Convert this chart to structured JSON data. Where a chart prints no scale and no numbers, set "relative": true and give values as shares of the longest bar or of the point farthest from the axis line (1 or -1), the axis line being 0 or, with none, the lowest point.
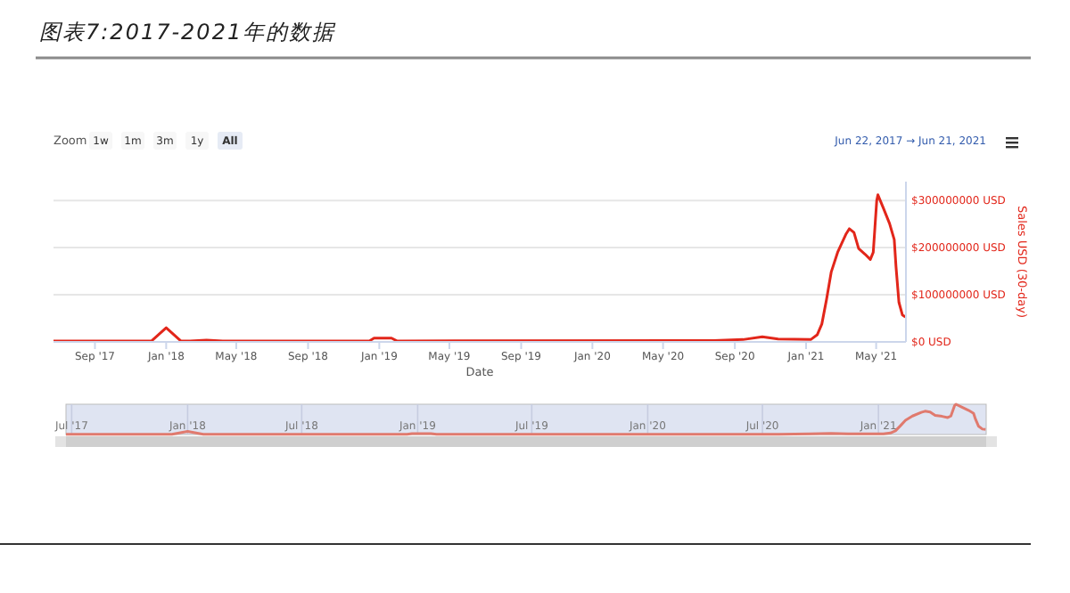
{
  "chart_data": [
    {
      "type": "line",
      "title": "图表7:2017-2021年的数据",
      "xlabel": "Date",
      "ylabel": "Sales USD (30-day)",
      "color": "#e2261a",
      "grid": "y",
      "annotations": [
        "Zoom",
        "1w",
        "1m",
        "3m",
        "1y",
        "All",
        "Jun 22, 2017",
        "→",
        "Jun 21, 2021"
      ],
      "x": [
        "2017-06-22",
        "2017-11-29",
        "2017-12-07",
        "2018-01-01",
        "2018-01-26",
        "2018-02-11",
        "2018-03-11",
        "2018-04-08",
        "2018-12-15",
        "2018-12-23",
        "2019-01-22",
        "2019-01-31",
        "2020-07-27",
        "2020-09-15",
        "2020-10-18",
        "2020-11-14",
        "2021-01-09",
        "2021-01-20",
        "2021-01-28",
        "2021-02-05",
        "2021-02-13",
        "2021-02-24",
        "2021-03-10",
        "2021-03-16",
        "2021-03-24",
        "2021-04-01",
        "2021-04-12",
        "2021-04-21",
        "2021-04-26",
        "2021-05-02",
        "2021-05-04",
        "2021-05-13",
        "2021-05-24",
        "2021-06-01",
        "2021-06-04",
        "2021-06-09",
        "2021-06-15",
        "2021-06-20"
      ],
      "values": [
        2000000,
        2000000,
        2000000,
        30000000,
        2000000,
        2000000,
        4000000,
        2000000,
        2000000,
        8000000,
        8000000,
        2000000,
        3000000,
        5000000,
        11000000,
        6000000,
        5000000,
        15000000,
        38000000,
        90000000,
        148000000,
        190000000,
        228000000,
        240000000,
        232000000,
        198000000,
        186000000,
        175000000,
        190000000,
        300000000,
        312000000,
        285000000,
        251000000,
        217000000,
        160000000,
        84000000,
        57000000,
        53000000
      ],
      "xlim": [
        "2017-06-22",
        "2021-06-21"
      ],
      "ylim": [
        0,
        340000000
      ],
      "xticks": [
        {
          "value": "2017-09-01",
          "label": "Sep '17"
        },
        {
          "value": "2018-01-01",
          "label": "Jan '18"
        },
        {
          "value": "2018-05-01",
          "label": "May '18"
        },
        {
          "value": "2018-09-01",
          "label": "Sep '18"
        },
        {
          "value": "2019-01-01",
          "label": "Jan '19"
        },
        {
          "value": "2019-05-01",
          "label": "May '19"
        },
        {
          "value": "2019-09-01",
          "label": "Sep '19"
        },
        {
          "value": "2020-01-01",
          "label": "Jan '20"
        },
        {
          "value": "2020-05-01",
          "label": "May '20"
        },
        {
          "value": "2020-09-01",
          "label": "Sep '20"
        },
        {
          "value": "2021-01-01",
          "label": "Jan '21"
        },
        {
          "value": "2021-05-01",
          "label": "May '21"
        }
      ],
      "yticks": [
        {
          "value": 0,
          "label": "$0 USD"
        },
        {
          "value": 100000000,
          "label": "$100000000 USD"
        },
        {
          "value": 200000000,
          "label": "$200000000 USD"
        },
        {
          "value": 300000000,
          "label": "$300000000 USD"
        }
      ]
    },
    {
      "type": "line",
      "relative": true,
      "color": "#e07a6e",
      "grid": "x",
      "tick_labels": "x",
      "x": [
        "2017-06-22",
        "2017-11-29",
        "2017-12-07",
        "2018-01-01",
        "2018-01-26",
        "2018-02-11",
        "2018-03-11",
        "2018-04-08",
        "2018-12-15",
        "2018-12-23",
        "2019-01-22",
        "2019-01-31",
        "2020-07-27",
        "2020-09-15",
        "2020-10-18",
        "2020-11-14",
        "2021-01-09",
        "2021-01-20",
        "2021-01-28",
        "2021-02-05",
        "2021-02-13",
        "2021-02-24",
        "2021-03-10",
        "2021-03-16",
        "2021-03-24",
        "2021-04-01",
        "2021-04-12",
        "2021-04-21",
        "2021-04-26",
        "2021-05-02",
        "2021-05-04",
        "2021-05-13",
        "2021-05-24",
        "2021-06-01",
        "2021-06-04",
        "2021-06-09",
        "2021-06-15",
        "2021-06-20"
      ],
      "values": [
        0.01,
        0.01,
        0.01,
        0.1,
        0.01,
        0.01,
        0.01,
        0.01,
        0.01,
        0.03,
        0.03,
        0.01,
        0.01,
        0.02,
        0.04,
        0.02,
        0.02,
        0.05,
        0.12,
        0.29,
        0.47,
        0.61,
        0.73,
        0.77,
        0.74,
        0.63,
        0.6,
        0.56,
        0.61,
        0.96,
        1,
        0.91,
        0.8,
        0.7,
        0.51,
        0.27,
        0.18,
        0.17
      ],
      "xlim": [
        "2017-06-22",
        "2021-06-21"
      ],
      "xticks": [
        {
          "value": "2017-07-01",
          "label": "Jul '17"
        },
        {
          "value": "2018-01-01",
          "label": "Jan '18"
        },
        {
          "value": "2018-07-01",
          "label": "Jul '18"
        },
        {
          "value": "2019-01-01",
          "label": "Jan '19"
        },
        {
          "value": "2019-07-01",
          "label": "Jul '19"
        },
        {
          "value": "2020-01-01",
          "label": "Jan '20"
        },
        {
          "value": "2020-07-01",
          "label": "Jul '20"
        },
        {
          "value": "2021-01-01",
          "label": "Jan '21"
        }
      ]
    }
  ]
}
